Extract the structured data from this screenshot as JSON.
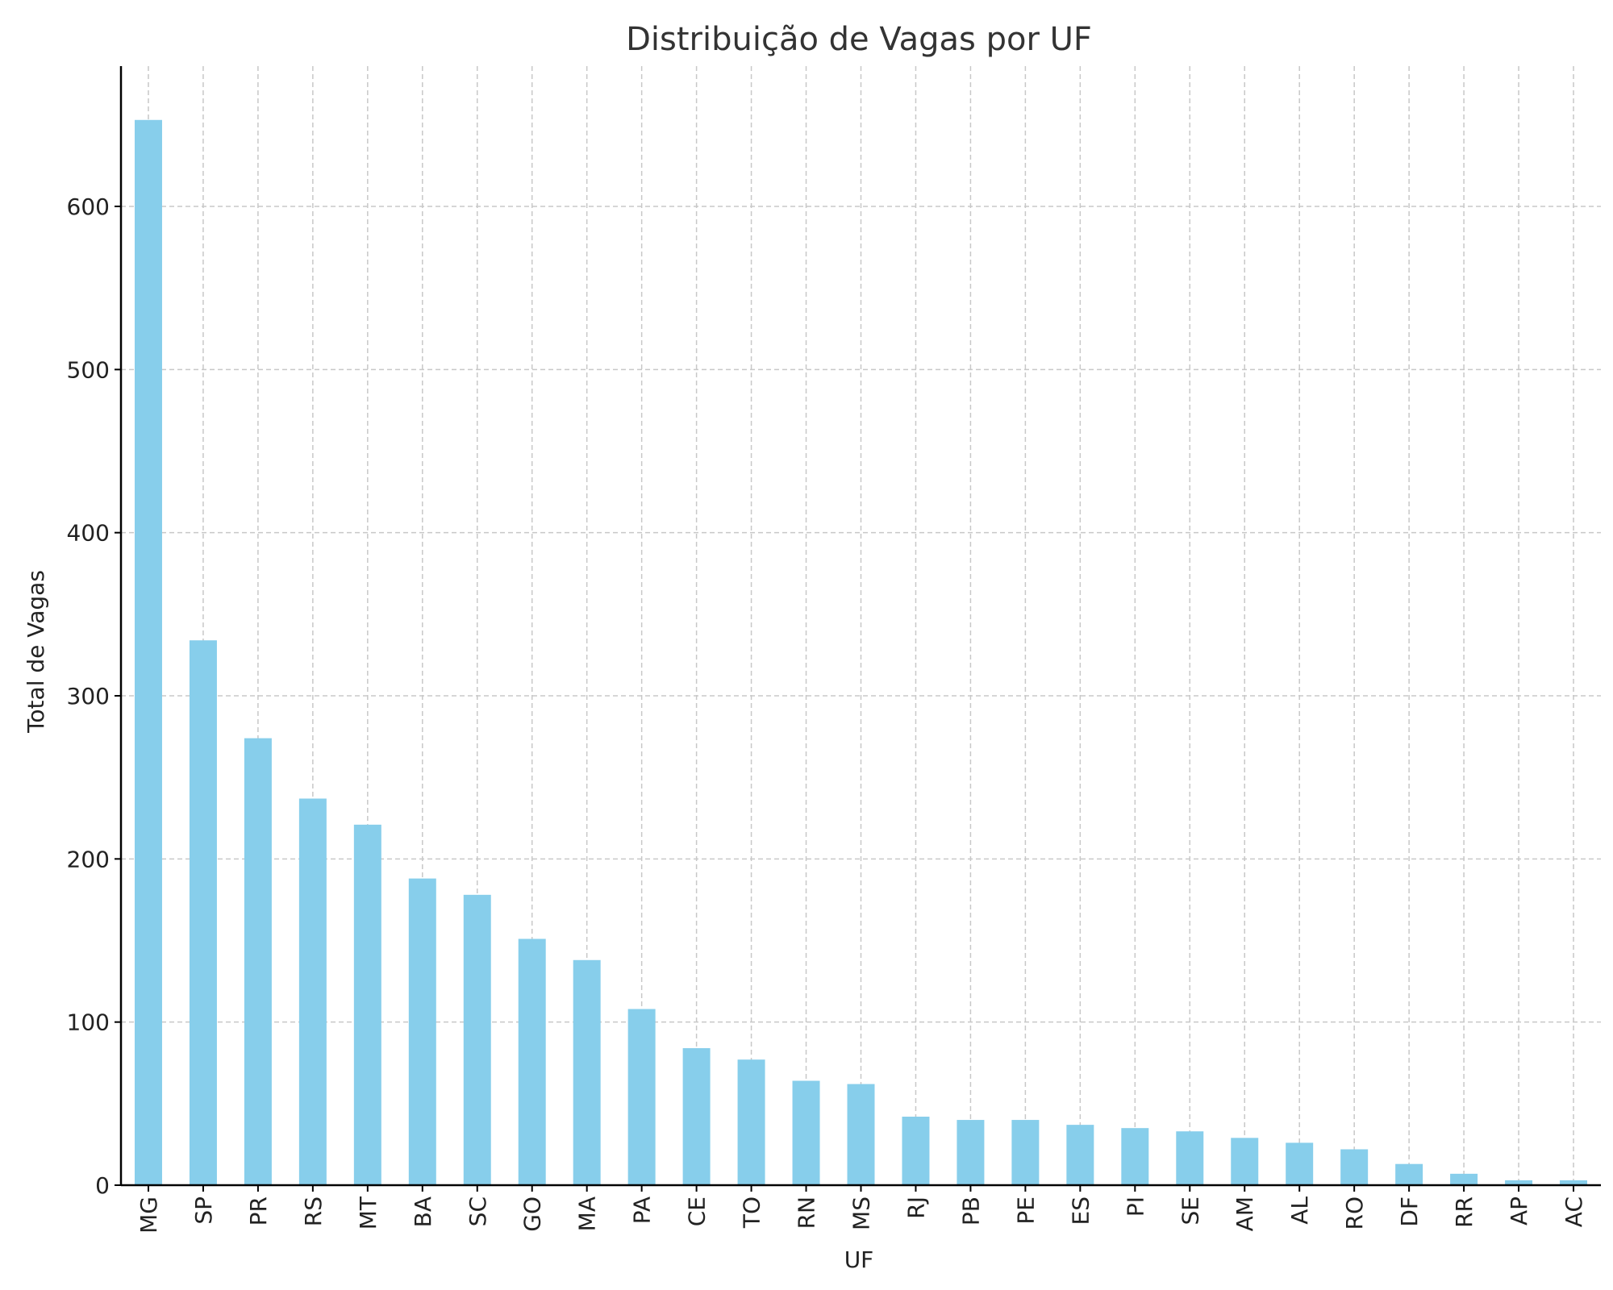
{
  "chart_data": {
    "type": "bar",
    "title": "Distribuição de Vagas por UF",
    "xlabel": "UF",
    "ylabel": "Total de Vagas",
    "categories": [
      "MG",
      "SP",
      "PR",
      "RS",
      "MT",
      "BA",
      "SC",
      "GO",
      "MA",
      "PA",
      "CE",
      "TO",
      "RN",
      "MS",
      "RJ",
      "PB",
      "PE",
      "ES",
      "PI",
      "SE",
      "AM",
      "AL",
      "RO",
      "DF",
      "RR",
      "AP",
      "AC"
    ],
    "values": [
      653,
      334,
      274,
      237,
      221,
      188,
      178,
      151,
      138,
      108,
      84,
      77,
      64,
      62,
      42,
      40,
      40,
      37,
      35,
      33,
      29,
      26,
      22,
      13,
      7,
      3,
      3
    ],
    "ylim": [
      0,
      686
    ],
    "yticks": [
      0,
      100,
      200,
      300,
      400,
      500,
      600
    ],
    "grid": true,
    "bar_color": "#87ceeb"
  }
}
